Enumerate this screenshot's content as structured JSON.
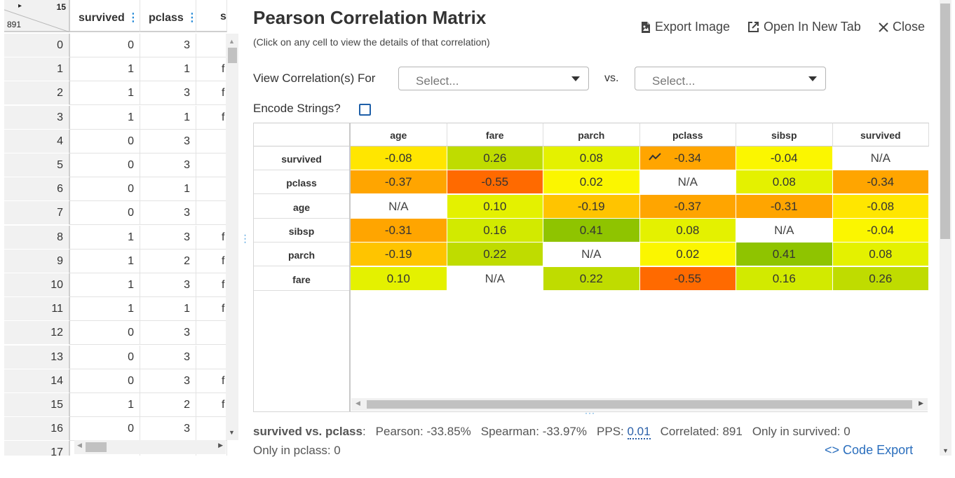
{
  "grid": {
    "corner": {
      "arrow": "▸",
      "col_count": "15",
      "row_count": "891"
    },
    "columns": [
      "survived",
      "pclass",
      "sex"
    ],
    "rows": [
      {
        "idx": "0",
        "survived": "0",
        "pclass": "3",
        "sex": ""
      },
      {
        "idx": "1",
        "survived": "1",
        "pclass": "1",
        "sex": "f"
      },
      {
        "idx": "2",
        "survived": "1",
        "pclass": "3",
        "sex": "f"
      },
      {
        "idx": "3",
        "survived": "1",
        "pclass": "1",
        "sex": "f"
      },
      {
        "idx": "4",
        "survived": "0",
        "pclass": "3",
        "sex": ""
      },
      {
        "idx": "5",
        "survived": "0",
        "pclass": "3",
        "sex": ""
      },
      {
        "idx": "6",
        "survived": "0",
        "pclass": "1",
        "sex": ""
      },
      {
        "idx": "7",
        "survived": "0",
        "pclass": "3",
        "sex": ""
      },
      {
        "idx": "8",
        "survived": "1",
        "pclass": "3",
        "sex": "f"
      },
      {
        "idx": "9",
        "survived": "1",
        "pclass": "2",
        "sex": "f"
      },
      {
        "idx": "10",
        "survived": "1",
        "pclass": "3",
        "sex": "f"
      },
      {
        "idx": "11",
        "survived": "1",
        "pclass": "1",
        "sex": "f"
      },
      {
        "idx": "12",
        "survived": "0",
        "pclass": "3",
        "sex": ""
      },
      {
        "idx": "13",
        "survived": "0",
        "pclass": "3",
        "sex": ""
      },
      {
        "idx": "14",
        "survived": "0",
        "pclass": "3",
        "sex": "f"
      },
      {
        "idx": "15",
        "survived": "1",
        "pclass": "2",
        "sex": "f"
      },
      {
        "idx": "16",
        "survived": "0",
        "pclass": "3",
        "sex": ""
      },
      {
        "idx": "17",
        "survived": "",
        "pclass": "",
        "sex": ""
      }
    ]
  },
  "popup": {
    "title": "Pearson Correlation Matrix",
    "subtitle": "(Click on any cell to view the details of that correlation)",
    "export_image": "Export Image",
    "open_new_tab": "Open In New Tab",
    "close": "Close",
    "view_for_label": "View Correlation(s) For",
    "select1_placeholder": "Select...",
    "vs_label": "vs.",
    "select2_placeholder": "Select...",
    "encode_label": "Encode Strings?",
    "encode_checked": false
  },
  "matrix": {
    "columns": [
      "age",
      "fare",
      "parch",
      "pclass",
      "sibsp",
      "survived"
    ],
    "rows": [
      {
        "name": "survived",
        "values": [
          -0.08,
          0.26,
          0.08,
          -0.34,
          -0.04,
          null
        ]
      },
      {
        "name": "pclass",
        "values": [
          -0.37,
          -0.55,
          0.02,
          null,
          0.08,
          -0.34
        ]
      },
      {
        "name": "age",
        "values": [
          null,
          0.1,
          -0.19,
          -0.37,
          -0.31,
          -0.08
        ]
      },
      {
        "name": "sibsp",
        "values": [
          -0.31,
          0.16,
          0.41,
          0.08,
          null,
          -0.04
        ]
      },
      {
        "name": "parch",
        "values": [
          -0.19,
          0.22,
          null,
          0.02,
          0.41,
          0.08
        ]
      },
      {
        "name": "fare",
        "values": [
          0.1,
          null,
          0.22,
          -0.55,
          0.16,
          0.26
        ]
      }
    ],
    "na_text": "N/A",
    "selected_cell": {
      "row": "survived",
      "col": "pclass"
    }
  },
  "footer": {
    "pair": "survived vs. pclass",
    "pearson_label": "Pearson:",
    "pearson_value": "-33.85%",
    "spearman_label": "Spearman:",
    "spearman_value": "-33.97%",
    "pps_label": "PPS:",
    "pps_value": "0.01",
    "correlated_label": "Correlated:",
    "correlated_value": "891",
    "only_survived_label": "Only in survived:",
    "only_survived_value": "0",
    "only_pclass_label": "Only in pclass:",
    "only_pclass_value": "0",
    "code_export": "Code Export"
  },
  "colors": {
    "accent_blue": "#2a6ebd",
    "strong_positive": "#8fc400",
    "positive": "#bfdc00",
    "neutral": "#ffff00",
    "negative": "#ffa500",
    "strong_negative": "#ff6a00"
  }
}
